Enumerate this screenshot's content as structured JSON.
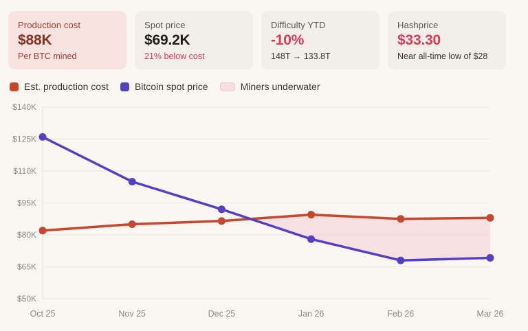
{
  "cards": [
    {
      "title": "Production cost",
      "value": "$88K",
      "subtitle": "Per BTC mined"
    },
    {
      "title": "Spot price",
      "value": "$69.2K",
      "subtitle": "21% below cost"
    },
    {
      "title": "Difficulty YTD",
      "value": "-10%",
      "subtitle": "148T → 133.8T"
    },
    {
      "title": "Hashprice",
      "value": "$33.30",
      "subtitle": "Near all-time low of $28"
    }
  ],
  "legend": [
    {
      "label": "Est. production cost",
      "swatch": "square",
      "color": "#C7472E"
    },
    {
      "label": "Bitcoin spot price",
      "swatch": "square",
      "color": "#5340C2"
    },
    {
      "label": "Miners underwater",
      "swatch": "pill",
      "color": "#F7DEE2"
    }
  ],
  "colors": {
    "page_background": "#FAF6F1",
    "card_background": "#F1EFE8",
    "card_pink_background": "#F9E3E0",
    "maroon_text": "#9E3D2F",
    "crimson_accent": "#D8395B",
    "production_cost_line": "#C7472E",
    "spot_price_line": "#5340C2",
    "underwater_fill": "#F2C6CF",
    "gridline": "#EAE4DD"
  },
  "chart_data": {
    "type": "line",
    "title": "",
    "xlabel": "",
    "ylabel": "",
    "categories": [
      "Oct 25",
      "Nov 25",
      "Dec 25",
      "Jan 26",
      "Feb 26",
      "Mar 26"
    ],
    "series": [
      {
        "name": "Est. production cost",
        "color": "#C7472E",
        "values": [
          82,
          85,
          86.5,
          89.5,
          87.5,
          88
        ]
      },
      {
        "name": "Bitcoin spot price",
        "color": "#5340C2",
        "values": [
          126,
          105,
          92,
          78,
          68,
          69.2
        ]
      }
    ],
    "fill_between": {
      "label": "Miners underwater",
      "condition": "where spot price is below production cost",
      "color": "#F2C6CF",
      "opacity": 0.45
    },
    "y_ticks": [
      "$140K",
      "$125K",
      "$110K",
      "$95K",
      "$80K",
      "$65K",
      "$50K"
    ],
    "ylim": [
      50,
      140
    ],
    "unit": "USD thousands per BTC",
    "grid": true,
    "legend_position": "top"
  }
}
